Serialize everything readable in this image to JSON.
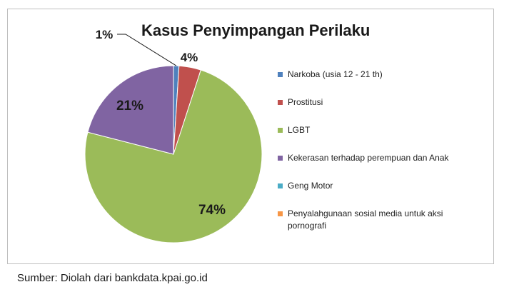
{
  "chart_data": {
    "type": "pie",
    "title": "Kasus Penyimpangan Perilaku",
    "legend_position": "right",
    "start_angle": "top",
    "direction": "clockwise",
    "slices": [
      {
        "name": "Narkoba (usia 12 - 21 th)",
        "value": 1,
        "label": "1%",
        "color": "#4f81bd"
      },
      {
        "name": "Prostitusi",
        "value": 4,
        "label": "4%",
        "color": "#c0504d"
      },
      {
        "name": "LGBT",
        "value": 74,
        "label": "74%",
        "color": "#9bbb59"
      },
      {
        "name": "Kekerasan terhadap perempuan dan Anak",
        "value": 21,
        "label": "21%",
        "color": "#8064a2"
      },
      {
        "name": "Geng Motor",
        "value": 0,
        "label": "",
        "color": "#4bacc6"
      },
      {
        "name": "Penyalahgunaan sosial media untuk aksi pornografi",
        "value": 0,
        "label": "",
        "color": "#f79646"
      }
    ]
  },
  "source_note": "Sumber: Diolah dari bankdata.kpai.go.id"
}
